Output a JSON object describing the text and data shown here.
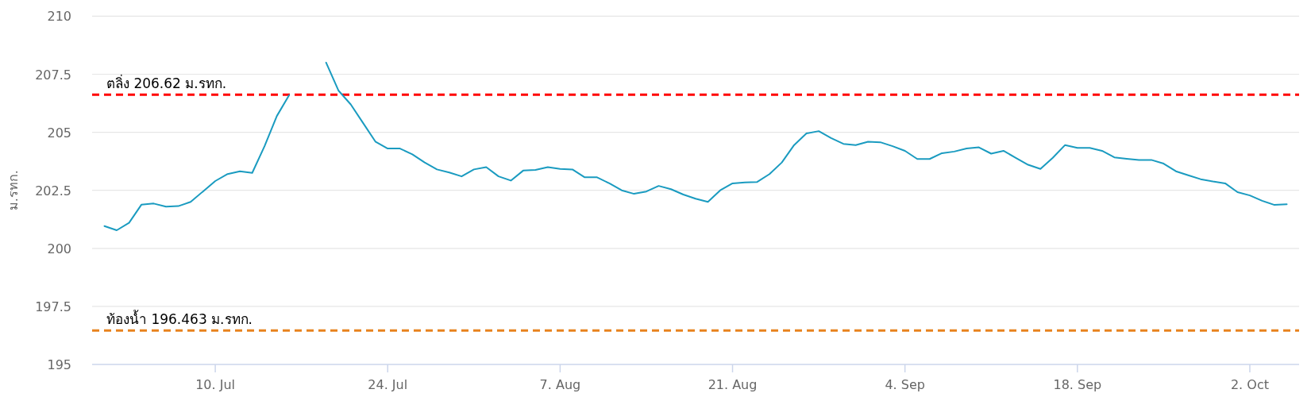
{
  "chart_data": {
    "type": "line",
    "ylabel": "ม.รทก.",
    "x": [
      "--07-01",
      "--07-02",
      "--07-03",
      "--07-04",
      "--07-05",
      "--07-06",
      "--07-07",
      "--07-08",
      "--07-09",
      "--07-10",
      "--07-11",
      "--07-12",
      "--07-13",
      "--07-14",
      "--07-15",
      "--07-16",
      "--07-17",
      "--07-18",
      "--07-19",
      "--07-20",
      "--07-21",
      "--07-22",
      "--07-23",
      "--07-24",
      "--07-25",
      "--07-26",
      "--07-27",
      "--07-28",
      "--07-29",
      "--07-30",
      "--07-31",
      "--08-01",
      "--08-02",
      "--08-03",
      "--08-04",
      "--08-05",
      "--08-06",
      "--08-07",
      "--08-08",
      "--08-09",
      "--08-10",
      "--08-11",
      "--08-12",
      "--08-13",
      "--08-14",
      "--08-15",
      "--08-16",
      "--08-17",
      "--08-18",
      "--08-19",
      "--08-20",
      "--08-21",
      "--08-22",
      "--08-23",
      "--08-24",
      "--08-25",
      "--08-26",
      "--08-27",
      "--08-28",
      "--08-29",
      "--08-30",
      "--08-31",
      "--09-01",
      "--09-02",
      "--09-03",
      "--09-04",
      "--09-05",
      "--09-06",
      "--09-07",
      "--09-08",
      "--09-09",
      "--09-10",
      "--09-11",
      "--09-12",
      "--09-13",
      "--09-14",
      "--09-15",
      "--09-16",
      "--09-17",
      "--09-18",
      "--09-19",
      "--09-20",
      "--09-21",
      "--09-22",
      "--09-23",
      "--09-24",
      "--09-25",
      "--09-26",
      "--09-27",
      "--09-28",
      "--09-29",
      "--09-30",
      "--10-01",
      "--10-02",
      "--10-03",
      "--10-04",
      "--10-05"
    ],
    "series": [
      {
        "color": "#1a9bc0",
        "values": [
          200.96,
          200.78,
          201.1,
          201.88,
          201.93,
          201.8,
          201.82,
          202.0,
          202.45,
          202.9,
          203.2,
          203.32,
          203.25,
          204.4,
          205.7,
          206.6,
          null,
          null,
          208.0,
          206.8,
          206.2,
          205.4,
          204.6,
          204.3,
          204.3,
          204.05,
          203.7,
          203.4,
          203.27,
          203.1,
          203.4,
          203.5,
          203.1,
          202.92,
          203.35,
          203.38,
          203.5,
          203.42,
          203.4,
          203.06,
          203.06,
          202.8,
          202.5,
          202.35,
          202.45,
          202.69,
          202.55,
          202.32,
          202.14,
          202.0,
          202.5,
          202.8,
          202.84,
          202.86,
          203.2,
          203.7,
          204.45,
          204.95,
          205.05,
          204.75,
          204.5,
          204.45,
          204.59,
          204.57,
          204.4,
          204.2,
          203.85,
          203.85,
          204.1,
          204.17,
          204.3,
          204.35,
          204.08,
          204.2,
          203.9,
          203.6,
          203.42,
          203.9,
          204.45,
          204.33,
          204.33,
          204.2,
          203.92,
          203.86,
          203.81,
          203.81,
          203.65,
          203.32,
          203.15,
          202.98,
          202.88,
          202.8,
          202.42,
          202.28,
          202.05,
          201.87,
          201.9
        ]
      }
    ],
    "xlim": [
      "--06-30",
      "--10-06"
    ],
    "xticks": [
      {
        "value": "--07-10",
        "label": "10. Jul"
      },
      {
        "value": "--07-24",
        "label": "24. Jul"
      },
      {
        "value": "--08-07",
        "label": "7. Aug"
      },
      {
        "value": "--08-21",
        "label": "21. Aug"
      },
      {
        "value": "--09-04",
        "label": "4. Sep"
      },
      {
        "value": "--09-18",
        "label": "18. Sep"
      },
      {
        "value": "--10-02",
        "label": "2. Oct"
      }
    ],
    "ylim": [
      195,
      210
    ],
    "yticks": [
      195,
      197.5,
      200,
      202.5,
      205,
      207.5,
      210
    ],
    "grid": "y",
    "marker": "none",
    "line_style": "solid",
    "ref_lines": [
      {
        "axis": "y",
        "value": 206.62,
        "label": "ตลิ่ง 206.62 ม.รทก.",
        "color": "#ff0000",
        "line_style": "dashed"
      },
      {
        "axis": "y",
        "value": 196.463,
        "label": "ท้องน้ำ 196.463 ม.รทก.",
        "color": "#e8821e",
        "line_style": "dashed"
      }
    ]
  }
}
